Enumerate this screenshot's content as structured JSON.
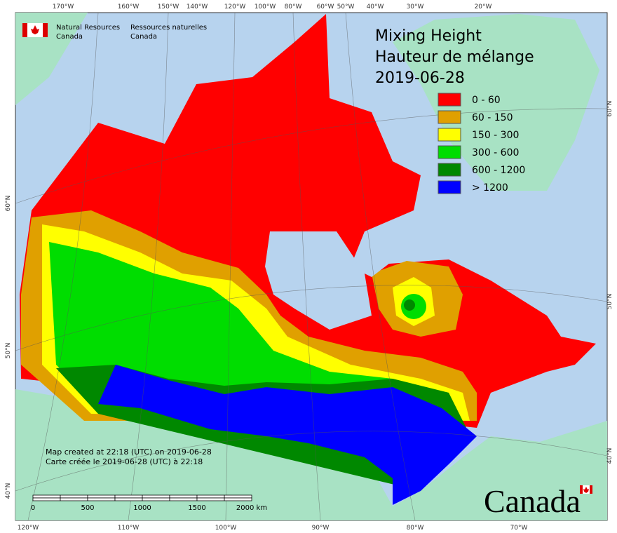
{
  "header": {
    "agency_en": [
      "Natural Resources",
      "Canada"
    ],
    "agency_fr": [
      "Ressources naturelles",
      "Canada"
    ]
  },
  "title": [
    "Mixing Height",
    "Hauteur de mélange",
    "2019-06-28"
  ],
  "legend": [
    {
      "label": "0 - 60",
      "color": "#ff0000"
    },
    {
      "label": "60 - 150",
      "color": "#e0a000"
    },
    {
      "label": "150 - 300",
      "color": "#ffff00"
    },
    {
      "label": "300 - 600",
      "color": "#00dd00"
    },
    {
      "label": "600 - 1200",
      "color": "#008800"
    },
    {
      "label": "> 1200",
      "color": "#0000ff"
    }
  ],
  "graticule": {
    "top": [
      "170°W",
      "160°W",
      "150°W",
      "140°W",
      "120°W",
      "100°W",
      "80°W",
      "60°W",
      "50°W",
      "40°W",
      "30°W",
      "20°W"
    ],
    "bottom": [
      "120°W",
      "110°W",
      "100°W",
      "90°W",
      "80°W",
      "70°W"
    ],
    "left": [
      "60°N",
      "50°N",
      "40°N"
    ],
    "right": [
      "60°N",
      "50°N",
      "40°N"
    ]
  },
  "scale_bar": {
    "labels": [
      "0",
      "500",
      "1000",
      "1500",
      "2000 km"
    ]
  },
  "credit": [
    "Map created at 22:18 (UTC) on 2019-06-28",
    "Carte créée le 2019-06-28 (UTC) à 22:18"
  ],
  "wordmark": "Canada"
}
